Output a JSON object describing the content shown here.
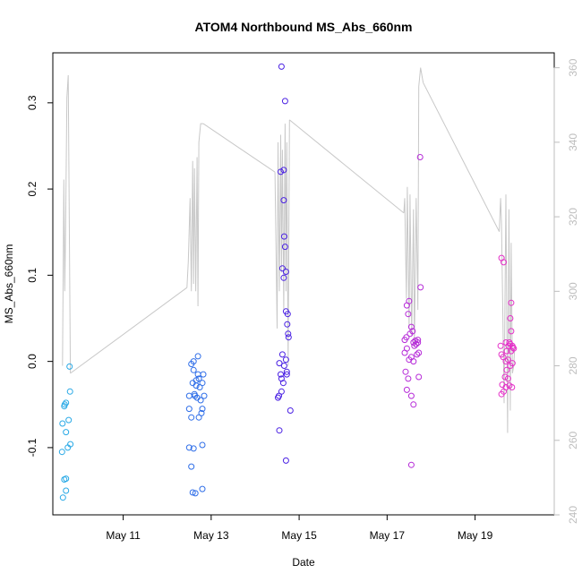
{
  "chart_data": {
    "type": "scatter",
    "title": "ATOM4 Northbound MS_Abs_660nm",
    "xlabel": "Date",
    "ylabel": "MS_Abs_660nm",
    "xlim": [
      9.4,
      20.8
    ],
    "ylim": [
      -0.178,
      0.358
    ],
    "y2lim": [
      240,
      364
    ],
    "x_ticks": [
      {
        "value": 11,
        "label": "May 11"
      },
      {
        "value": 13,
        "label": "May 13"
      },
      {
        "value": 15,
        "label": "May 15"
      },
      {
        "value": 17,
        "label": "May 17"
      },
      {
        "value": 19,
        "label": "May 19"
      }
    ],
    "y_ticks": [
      {
        "value": -0.1,
        "label": "-0.1"
      },
      {
        "value": 0.0,
        "label": "0.0"
      },
      {
        "value": 0.1,
        "label": "0.1"
      },
      {
        "value": 0.2,
        "label": "0.2"
      },
      {
        "value": 0.3,
        "label": "0.3"
      }
    ],
    "y2_ticks": [
      {
        "value": 240,
        "label": "240"
      },
      {
        "value": 260,
        "label": "260"
      },
      {
        "value": 280,
        "label": "280"
      },
      {
        "value": 300,
        "label": "300"
      },
      {
        "value": 320,
        "label": "320"
      },
      {
        "value": 340,
        "label": "340"
      },
      {
        "value": 360,
        "label": "360"
      }
    ],
    "colors": {
      "g1": "#29a9e6",
      "g2": "#2f6ee8",
      "g3": "#4a21e3",
      "g4": "#b62bd8",
      "g5": "#e52fc8",
      "secondary_line": "#c8c8c8"
    },
    "series": [
      {
        "color_key": "g1",
        "points": [
          [
            9.62,
            -0.072
          ],
          [
            9.66,
            -0.052
          ],
          [
            9.67,
            -0.05
          ],
          [
            9.7,
            -0.048
          ],
          [
            9.78,
            -0.006
          ],
          [
            9.79,
            -0.035
          ],
          [
            9.7,
            -0.082
          ],
          [
            9.76,
            -0.068
          ],
          [
            9.61,
            -0.105
          ],
          [
            9.74,
            -0.1
          ],
          [
            9.8,
            -0.096
          ],
          [
            9.66,
            -0.137
          ],
          [
            9.7,
            -0.136
          ],
          [
            9.7,
            -0.15
          ],
          [
            9.63,
            -0.158
          ]
        ]
      },
      {
        "color_key": "g2",
        "points": [
          [
            12.5,
            -0.04
          ],
          [
            12.55,
            -0.003
          ],
          [
            12.58,
            -0.025
          ],
          [
            12.6,
            -0.01
          ],
          [
            12.63,
            -0.04
          ],
          [
            12.66,
            -0.028
          ],
          [
            12.7,
            0.006
          ],
          [
            12.72,
            -0.02
          ],
          [
            12.74,
            -0.03
          ],
          [
            12.76,
            -0.045
          ],
          [
            12.78,
            -0.06
          ],
          [
            12.8,
            -0.025
          ],
          [
            12.82,
            -0.015
          ],
          [
            12.84,
            -0.04
          ],
          [
            12.5,
            -0.055
          ],
          [
            12.55,
            -0.065
          ],
          [
            12.62,
            -0.038
          ],
          [
            12.68,
            -0.042
          ],
          [
            12.72,
            -0.065
          ],
          [
            12.8,
            -0.055
          ],
          [
            12.5,
            -0.1
          ],
          [
            12.6,
            -0.101
          ],
          [
            12.8,
            -0.097
          ],
          [
            12.55,
            -0.122
          ],
          [
            12.58,
            -0.152
          ],
          [
            12.64,
            -0.153
          ],
          [
            12.8,
            -0.148
          ],
          [
            12.6,
            0.0
          ],
          [
            12.66,
            -0.022
          ],
          [
            12.7,
            -0.015
          ]
        ]
      },
      {
        "color_key": "g3",
        "points": [
          [
            14.52,
            -0.042
          ],
          [
            14.55,
            -0.002
          ],
          [
            14.58,
            -0.015
          ],
          [
            14.6,
            -0.035
          ],
          [
            14.62,
            0.008
          ],
          [
            14.64,
            -0.025
          ],
          [
            14.66,
            -0.005
          ],
          [
            14.7,
            0.002
          ],
          [
            14.72,
            -0.012
          ],
          [
            14.75,
            0.032
          ],
          [
            14.76,
            0.028
          ],
          [
            14.74,
            0.055
          ],
          [
            14.7,
            0.058
          ],
          [
            14.73,
            0.043
          ],
          [
            14.8,
            -0.057
          ],
          [
            14.55,
            -0.08
          ],
          [
            14.7,
            -0.115
          ],
          [
            14.72,
            -0.015
          ],
          [
            14.58,
            0.22
          ],
          [
            14.65,
            0.222
          ],
          [
            14.65,
            0.187
          ],
          [
            14.68,
            0.133
          ],
          [
            14.66,
            0.145
          ],
          [
            14.62,
            0.108
          ],
          [
            14.7,
            0.104
          ],
          [
            14.65,
            0.097
          ],
          [
            14.6,
            0.342
          ],
          [
            14.68,
            0.302
          ],
          [
            14.54,
            -0.04
          ],
          [
            14.6,
            -0.02
          ]
        ]
      },
      {
        "color_key": "g4",
        "points": [
          [
            17.4,
            0.025
          ],
          [
            17.45,
            0.065
          ],
          [
            17.5,
            0.07
          ],
          [
            17.48,
            0.055
          ],
          [
            17.55,
            0.04
          ],
          [
            17.52,
            0.032
          ],
          [
            17.58,
            0.035
          ],
          [
            17.6,
            0.022
          ],
          [
            17.62,
            0.018
          ],
          [
            17.66,
            0.02
          ],
          [
            17.7,
            0.025
          ],
          [
            17.68,
            0.008
          ],
          [
            17.72,
            0.01
          ],
          [
            17.4,
            0.01
          ],
          [
            17.45,
            0.015
          ],
          [
            17.5,
            0.002
          ],
          [
            17.55,
            0.005
          ],
          [
            17.6,
            0.0
          ],
          [
            17.42,
            -0.012
          ],
          [
            17.48,
            -0.02
          ],
          [
            17.45,
            -0.033
          ],
          [
            17.55,
            -0.04
          ],
          [
            17.6,
            -0.05
          ],
          [
            17.72,
            -0.018
          ],
          [
            17.55,
            -0.12
          ],
          [
            17.75,
            0.237
          ],
          [
            17.76,
            0.086
          ],
          [
            17.44,
            0.028
          ],
          [
            17.64,
            0.024
          ],
          [
            17.7,
            0.022
          ]
        ]
      },
      {
        "color_key": "g5",
        "points": [
          [
            19.6,
            0.12
          ],
          [
            19.65,
            0.115
          ],
          [
            19.82,
            0.068
          ],
          [
            19.8,
            0.05
          ],
          [
            19.82,
            0.035
          ],
          [
            19.58,
            0.018
          ],
          [
            19.64,
            0.005
          ],
          [
            19.7,
            0.0
          ],
          [
            19.78,
            0.022
          ],
          [
            19.85,
            0.018
          ],
          [
            19.88,
            0.015
          ],
          [
            19.82,
            0.012
          ],
          [
            19.75,
            0.002
          ],
          [
            19.8,
            -0.005
          ],
          [
            19.85,
            -0.002
          ],
          [
            19.72,
            -0.01
          ],
          [
            19.6,
            0.008
          ],
          [
            19.68,
            -0.018
          ],
          [
            19.75,
            -0.02
          ],
          [
            19.62,
            -0.027
          ],
          [
            19.7,
            -0.03
          ],
          [
            19.78,
            -0.028
          ],
          [
            19.84,
            -0.03
          ],
          [
            19.65,
            -0.035
          ],
          [
            19.6,
            -0.038
          ],
          [
            19.76,
            0.018
          ],
          [
            19.8,
            0.02
          ],
          [
            19.72,
            0.012
          ],
          [
            19.7,
            0.022
          ],
          [
            19.86,
            0.016
          ]
        ]
      }
    ],
    "secondary_line": {
      "segments": [
        [
          [
            9.62,
            280
          ],
          [
            9.65,
            330
          ],
          [
            9.67,
            300
          ],
          [
            9.69,
            315
          ],
          [
            9.72,
            352
          ],
          [
            9.75,
            358
          ],
          [
            9.8,
            278
          ]
        ],
        [
          [
            9.8,
            278
          ],
          [
            12.45,
            301
          ]
        ],
        [
          [
            12.45,
            301
          ],
          [
            12.48,
            308
          ],
          [
            12.52,
            325
          ],
          [
            12.55,
            300
          ],
          [
            12.58,
            335
          ],
          [
            12.6,
            302
          ],
          [
            12.62,
            333
          ],
          [
            12.65,
            300
          ],
          [
            12.68,
            336
          ],
          [
            12.7,
            296
          ],
          [
            12.72,
            340
          ],
          [
            12.76,
            345
          ],
          [
            12.82,
            345
          ]
        ],
        [
          [
            12.82,
            345
          ],
          [
            14.45,
            332
          ]
        ],
        [
          [
            14.45,
            332
          ],
          [
            14.5,
            290
          ],
          [
            14.52,
            340
          ],
          [
            14.55,
            300
          ],
          [
            14.58,
            342
          ],
          [
            14.6,
            305
          ],
          [
            14.62,
            338
          ],
          [
            14.65,
            295
          ],
          [
            14.68,
            345
          ],
          [
            14.7,
            300
          ],
          [
            14.72,
            340
          ],
          [
            14.75,
            280
          ],
          [
            14.78,
            346
          ]
        ],
        [
          [
            14.78,
            346
          ],
          [
            17.38,
            321
          ]
        ],
        [
          [
            17.38,
            321
          ],
          [
            17.4,
            325
          ],
          [
            17.44,
            298
          ],
          [
            17.46,
            328
          ],
          [
            17.5,
            290
          ],
          [
            17.52,
            326
          ],
          [
            17.56,
            288
          ],
          [
            17.6,
            322
          ],
          [
            17.62,
            285
          ],
          [
            17.66,
            325
          ],
          [
            17.7,
            295
          ],
          [
            17.72,
            355
          ],
          [
            17.76,
            360
          ],
          [
            17.82,
            356
          ]
        ],
        [
          [
            17.82,
            356
          ],
          [
            19.55,
            316
          ]
        ],
        [
          [
            19.55,
            316
          ],
          [
            19.58,
            325
          ],
          [
            19.6,
            318
          ],
          [
            19.63,
            295
          ],
          [
            19.66,
            270
          ],
          [
            19.7,
            326
          ],
          [
            19.74,
            262
          ],
          [
            19.77,
            322
          ],
          [
            19.8,
            268
          ],
          [
            19.82,
            313
          ],
          [
            19.85,
            278
          ],
          [
            19.88,
            280
          ],
          [
            19.9,
            285
          ]
        ]
      ]
    }
  }
}
